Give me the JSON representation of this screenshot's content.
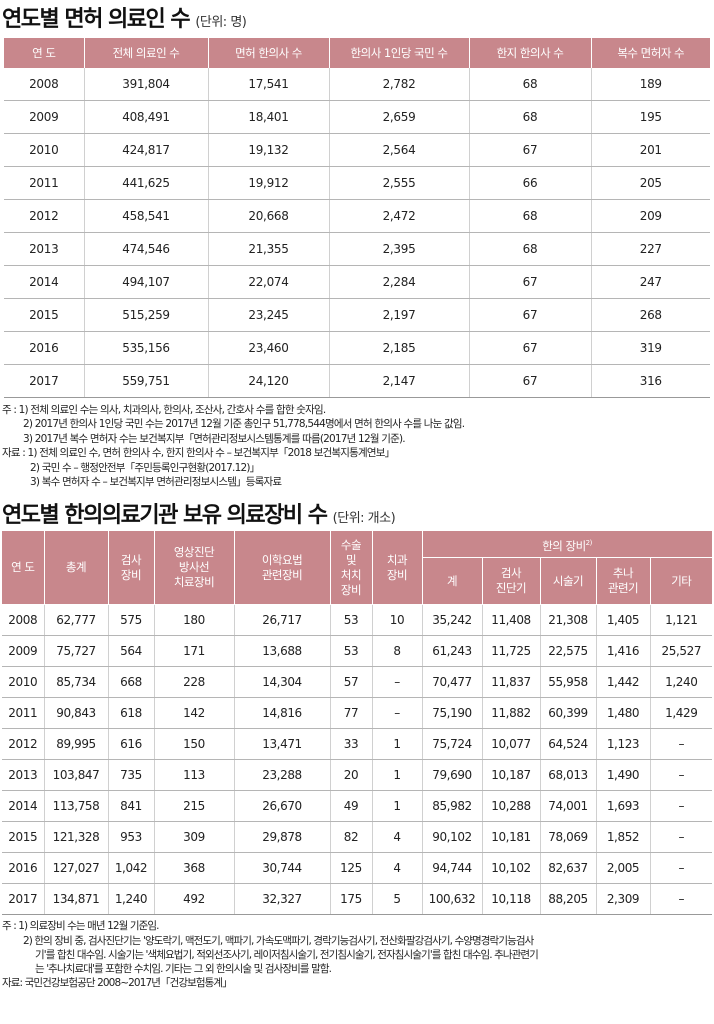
{
  "table1": {
    "title": "연도별 면허 의료인 수",
    "unit": "(단위: 명)",
    "headers": [
      "연 도",
      "전체 의료인 수",
      "면허 한의사 수",
      "한의사 1인당 국민 수",
      "한지 한의사 수",
      "복수 면허자 수"
    ],
    "rows": [
      [
        "2008",
        "391,804",
        "17,541",
        "2,782",
        "68",
        "189"
      ],
      [
        "2009",
        "408,491",
        "18,401",
        "2,659",
        "68",
        "195"
      ],
      [
        "2010",
        "424,817",
        "19,132",
        "2,564",
        "67",
        "201"
      ],
      [
        "2011",
        "441,625",
        "19,912",
        "2,555",
        "66",
        "205"
      ],
      [
        "2012",
        "458,541",
        "20,668",
        "2,472",
        "68",
        "209"
      ],
      [
        "2013",
        "474,546",
        "21,355",
        "2,395",
        "68",
        "227"
      ],
      [
        "2014",
        "494,107",
        "22,074",
        "2,284",
        "67",
        "247"
      ],
      [
        "2015",
        "515,259",
        "23,245",
        "2,197",
        "67",
        "268"
      ],
      [
        "2016",
        "535,156",
        "23,460",
        "2,185",
        "67",
        "319"
      ],
      [
        "2017",
        "559,751",
        "24,120",
        "2,147",
        "67",
        "316"
      ]
    ],
    "notes": [
      "주 : 1) 전체 의료인 수는 의사, 치과의사, 한의사, 조산사, 간호사 수를 합한 숫자임.",
      "2) 2017년 한의사 1인당 국민 수는 2017년 12월 기준 총인구 51,778,544명에서 면허 한의사 수를 나눈 값임.",
      "3) 2017년 복수 면허자 수는 보건복지부「면허관리정보시스템통계를 따름(2017년 12월 기준).",
      "자료 : 1) 전체 의료인 수, 면허 한의사 수, 한지 한의사 수 – 보건복지부「2018 보건복지통계연보」",
      "2) 국민 수 – 행정안전부「주민등록인구현황(2017.12)」",
      "3) 복수 면허자 수 – 보건복지부 면허관리정보시스템」등록자료"
    ]
  },
  "table2": {
    "title": "연도별 한의의료기관 보유 의료장비 수",
    "unit": "(단위: 개소)",
    "headers": {
      "year": "연 도",
      "total": "총계",
      "exam": "검사\n장비",
      "imaging": "영상진단\n방사선\n치료장비",
      "physio": "이학요법\n관련장비",
      "surgery": "수술\n및\n처치\n장비",
      "dental": "치과\n장비",
      "herbal_group": "한의 장비",
      "herbal_group_sup": "2)",
      "herbal_sum": "계",
      "herbal_diag": "검사\n진단기",
      "herbal_acu": "시술기",
      "herbal_chuna": "추나\n관련기",
      "herbal_other": "기타"
    },
    "rows": [
      [
        "2008",
        "62,777",
        "575",
        "180",
        "26,717",
        "53",
        "10",
        "35,242",
        "11,408",
        "21,308",
        "1,405",
        "1,121"
      ],
      [
        "2009",
        "75,727",
        "564",
        "171",
        "13,688",
        "53",
        "8",
        "61,243",
        "11,725",
        "22,575",
        "1,416",
        "25,527"
      ],
      [
        "2010",
        "85,734",
        "668",
        "228",
        "14,304",
        "57",
        "–",
        "70,477",
        "11,837",
        "55,958",
        "1,442",
        "1,240"
      ],
      [
        "2011",
        "90,843",
        "618",
        "142",
        "14,816",
        "77",
        "–",
        "75,190",
        "11,882",
        "60,399",
        "1,480",
        "1,429"
      ],
      [
        "2012",
        "89,995",
        "616",
        "150",
        "13,471",
        "33",
        "1",
        "75,724",
        "10,077",
        "64,524",
        "1,123",
        "–"
      ],
      [
        "2013",
        "103,847",
        "735",
        "113",
        "23,288",
        "20",
        "1",
        "79,690",
        "10,187",
        "68,013",
        "1,490",
        "–"
      ],
      [
        "2014",
        "113,758",
        "841",
        "215",
        "26,670",
        "49",
        "1",
        "85,982",
        "10,288",
        "74,001",
        "1,693",
        "–"
      ],
      [
        "2015",
        "121,328",
        "953",
        "309",
        "29,878",
        "82",
        "4",
        "90,102",
        "10,181",
        "78,069",
        "1,852",
        "–"
      ],
      [
        "2016",
        "127,027",
        "1,042",
        "368",
        "30,744",
        "125",
        "4",
        "94,744",
        "10,102",
        "82,637",
        "2,005",
        "–"
      ],
      [
        "2017",
        "134,871",
        "1,240",
        "492",
        "32,327",
        "175",
        "5",
        "100,632",
        "10,118",
        "88,205",
        "2,309",
        "–"
      ]
    ],
    "notes": [
      "주 : 1) 의료장비 수는 매년 12월 기준임.",
      "2) 한의 장비 중, 검사진단기는 '양도락기, 맥전도기, 맥파기, 가속도맥파기, 경락기능검사기, 전산화팔강검사기, 수양명경락기능검사",
      "기'를 합친 대수임. 시술기는 '색체요법기, 적외선조사기, 레이저침시술기, 전기침시술기, 전자침시술기'를 합친 대수임. 추나관련기",
      "는 '추나치료대'를 포함한 수치임. 기타는 그 외 한의시술 및 검사장비를 말함.",
      "자료: 국민건강보험공단 2008~2017년「건강보험통계」"
    ]
  }
}
